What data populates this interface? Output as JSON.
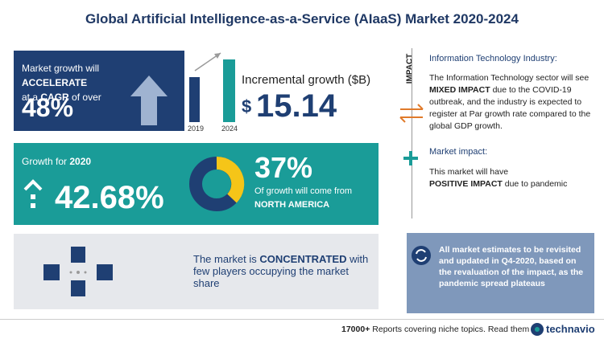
{
  "title": "Global Artificial Intelligence-as-a-Service (AIaaS) Market 2020-2024",
  "cagr": {
    "text1": "Market growth will",
    "emph1": "ACCELERATE",
    "text2": "at a",
    "emph2": "CAGR",
    "text3": "of over",
    "value": "48%"
  },
  "incremental": {
    "years": [
      "2019",
      "2024"
    ],
    "label": "Incremental growth ($B)",
    "currency": "$",
    "value": "15.14"
  },
  "growth_2020": {
    "label": "Growth for",
    "year": "2020",
    "value": "42.68%"
  },
  "region": {
    "value": "37%",
    "text": "Of growth will come from",
    "name": "NORTH AMERICA"
  },
  "concentration": {
    "text1": "The market is",
    "emph": "CONCENTRATED",
    "text2": "with few players occupying the market share"
  },
  "impact": {
    "heading": "IMPACT",
    "industry_title": "Information Technology Industry:",
    "industry_text1": "The Information Technology sector will see",
    "industry_emph": "MIXED IMPACT",
    "industry_text2": "due to the COVID-19 outbreak, and the industry is expected to register at Par growth rate compared to the global GDP growth.",
    "market_title": "Market impact:",
    "market_text1": "This market will have",
    "market_emph": "POSITIVE IMPACT",
    "market_text2": "due to pandemic"
  },
  "note": "All market estimates to be revisited and updated in Q4-2020, based on the revaluation of the impact, as the pandemic spread plateaus",
  "footer": {
    "count": "17000+",
    "text": "Reports covering niche topics. Read them at",
    "brand": "technavio"
  }
}
